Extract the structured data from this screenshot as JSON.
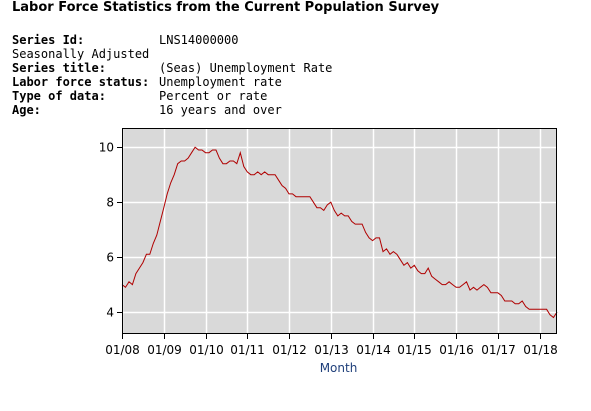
{
  "header": {
    "title": "Labor Force Statistics from the Current Population Survey"
  },
  "series_info": {
    "series_id_label": "Series Id:",
    "series_id": "LNS14000000",
    "adjustment": "Seasonally Adjusted",
    "series_title_label": "Series title:",
    "series_title": "(Seas) Unemployment Rate",
    "status_label": "Labor force status:",
    "status": "Unemployment rate",
    "type_label": "Type of data:",
    "type": "Percent or rate",
    "age_label": "Age:",
    "age": "16 years and over"
  },
  "chart_data": {
    "type": "line",
    "title": "",
    "xlabel": "Month",
    "ylabel": "",
    "x_ticks": [
      "01/08",
      "01/09",
      "01/10",
      "01/11",
      "01/12",
      "01/13",
      "01/14",
      "01/15",
      "01/16",
      "01/17",
      "01/18"
    ],
    "y_ticks": [
      4,
      6,
      8,
      10
    ],
    "ylim": [
      3.2,
      10.7
    ],
    "xlim": [
      "2008-01",
      "2018-06"
    ],
    "grid": true,
    "line_color": "#b00000",
    "background_color": "#d9d9d9",
    "series": [
      {
        "x": [
          "2008-01",
          "2008-02",
          "2008-03",
          "2008-04",
          "2008-05",
          "2008-06",
          "2008-07",
          "2008-08",
          "2008-09",
          "2008-10",
          "2008-11",
          "2008-12",
          "2009-01",
          "2009-02",
          "2009-03",
          "2009-04",
          "2009-05",
          "2009-06",
          "2009-07",
          "2009-08",
          "2009-09",
          "2009-10",
          "2009-11",
          "2009-12",
          "2010-01",
          "2010-02",
          "2010-03",
          "2010-04",
          "2010-05",
          "2010-06",
          "2010-07",
          "2010-08",
          "2010-09",
          "2010-10",
          "2010-11",
          "2010-12",
          "2011-01",
          "2011-02",
          "2011-03",
          "2011-04",
          "2011-05",
          "2011-06",
          "2011-07",
          "2011-08",
          "2011-09",
          "2011-10",
          "2011-11",
          "2011-12",
          "2012-01",
          "2012-02",
          "2012-03",
          "2012-04",
          "2012-05",
          "2012-06",
          "2012-07",
          "2012-08",
          "2012-09",
          "2012-10",
          "2012-11",
          "2012-12",
          "2013-01",
          "2013-02",
          "2013-03",
          "2013-04",
          "2013-05",
          "2013-06",
          "2013-07",
          "2013-08",
          "2013-09",
          "2013-10",
          "2013-11",
          "2013-12",
          "2014-01",
          "2014-02",
          "2014-03",
          "2014-04",
          "2014-05",
          "2014-06",
          "2014-07",
          "2014-08",
          "2014-09",
          "2014-10",
          "2014-11",
          "2014-12",
          "2015-01",
          "2015-02",
          "2015-03",
          "2015-04",
          "2015-05",
          "2015-06",
          "2015-07",
          "2015-08",
          "2015-09",
          "2015-10",
          "2015-11",
          "2015-12",
          "2016-01",
          "2016-02",
          "2016-03",
          "2016-04",
          "2016-05",
          "2016-06",
          "2016-07",
          "2016-08",
          "2016-09",
          "2016-10",
          "2016-11",
          "2016-12",
          "2017-01",
          "2017-02",
          "2017-03",
          "2017-04",
          "2017-05",
          "2017-06",
          "2017-07",
          "2017-08",
          "2017-09",
          "2017-10",
          "2017-11",
          "2017-12",
          "2018-01",
          "2018-02",
          "2018-03",
          "2018-04",
          "2018-05",
          "2018-06"
        ],
        "values": [
          5.0,
          4.9,
          5.1,
          5.0,
          5.4,
          5.6,
          5.8,
          6.1,
          6.1,
          6.5,
          6.8,
          7.3,
          7.8,
          8.3,
          8.7,
          9.0,
          9.4,
          9.5,
          9.5,
          9.6,
          9.8,
          10.0,
          9.9,
          9.9,
          9.8,
          9.8,
          9.9,
          9.9,
          9.6,
          9.4,
          9.4,
          9.5,
          9.5,
          9.4,
          9.8,
          9.3,
          9.1,
          9.0,
          9.0,
          9.1,
          9.0,
          9.1,
          9.0,
          9.0,
          9.0,
          8.8,
          8.6,
          8.5,
          8.3,
          8.3,
          8.2,
          8.2,
          8.2,
          8.2,
          8.2,
          8.0,
          7.8,
          7.8,
          7.7,
          7.9,
          8.0,
          7.7,
          7.5,
          7.6,
          7.5,
          7.5,
          7.3,
          7.2,
          7.2,
          7.2,
          6.9,
          6.7,
          6.6,
          6.7,
          6.7,
          6.2,
          6.3,
          6.1,
          6.2,
          6.1,
          5.9,
          5.7,
          5.8,
          5.6,
          5.7,
          5.5,
          5.4,
          5.4,
          5.6,
          5.3,
          5.2,
          5.1,
          5.0,
          5.0,
          5.1,
          5.0,
          4.9,
          4.9,
          5.0,
          5.1,
          4.8,
          4.9,
          4.8,
          4.9,
          5.0,
          4.9,
          4.7,
          4.7,
          4.7,
          4.6,
          4.4,
          4.4,
          4.4,
          4.3,
          4.3,
          4.4,
          4.2,
          4.1,
          4.1,
          4.1,
          4.1,
          4.1,
          4.1,
          3.9,
          3.8,
          4.0
        ]
      }
    ]
  }
}
